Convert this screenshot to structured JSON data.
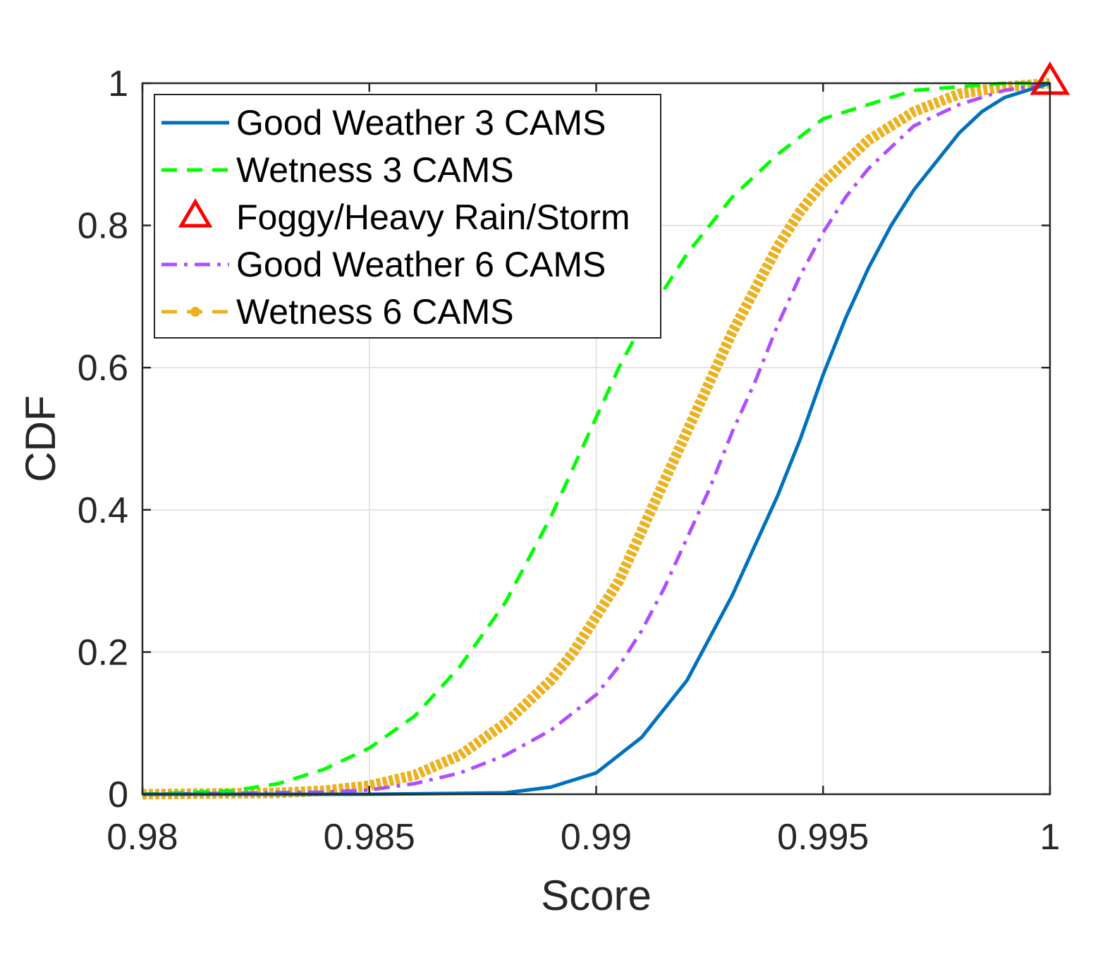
{
  "chart_data": {
    "type": "line",
    "xlabel": "Score",
    "ylabel": "CDF",
    "xlim": [
      0.98,
      1.0
    ],
    "ylim": [
      0,
      1
    ],
    "grid": true,
    "legend_position": "top-left",
    "xticks": [
      0.98,
      0.985,
      0.99,
      0.995,
      1.0
    ],
    "xtick_labels": [
      "0.98",
      "0.985",
      "0.99",
      "0.995",
      "1"
    ],
    "yticks": [
      0,
      0.2,
      0.4,
      0.6,
      0.8,
      1.0
    ],
    "ytick_labels": [
      "0",
      "0.2",
      "0.4",
      "0.6",
      "0.8",
      "1"
    ],
    "series": [
      {
        "name": "Good Weather 3 CAMS",
        "color": "#0072BD",
        "style": "solid",
        "x": [
          0.98,
          0.985,
          0.988,
          0.989,
          0.99,
          0.991,
          0.992,
          0.993,
          0.9935,
          0.994,
          0.9945,
          0.995,
          0.9955,
          0.996,
          0.9965,
          0.997,
          0.9975,
          0.998,
          0.9985,
          0.999,
          0.9995,
          1.0
        ],
        "y": [
          0.0,
          0.0,
          0.002,
          0.01,
          0.03,
          0.08,
          0.16,
          0.28,
          0.35,
          0.42,
          0.5,
          0.59,
          0.67,
          0.74,
          0.8,
          0.85,
          0.89,
          0.93,
          0.96,
          0.98,
          0.99,
          1.0
        ]
      },
      {
        "name": "Wetness 3 CAMS",
        "color": "#00FF00",
        "style": "dashed",
        "x": [
          0.98,
          0.982,
          0.983,
          0.984,
          0.985,
          0.986,
          0.987,
          0.988,
          0.9885,
          0.989,
          0.9895,
          0.99,
          0.9905,
          0.991,
          0.9915,
          0.992,
          0.993,
          0.994,
          0.995,
          0.996,
          0.997,
          0.998,
          0.999,
          1.0
        ],
        "y": [
          0.0,
          0.005,
          0.015,
          0.035,
          0.065,
          0.11,
          0.18,
          0.27,
          0.33,
          0.39,
          0.46,
          0.53,
          0.6,
          0.66,
          0.71,
          0.76,
          0.84,
          0.9,
          0.95,
          0.97,
          0.99,
          0.995,
          1.0,
          1.0
        ]
      },
      {
        "name": "Foggy/Heavy Rain/Storm",
        "color": "#FF0000",
        "style": "marker-triangle",
        "x": [
          1.0
        ],
        "y": [
          1.0
        ]
      },
      {
        "name": "Good Weather 6 CAMS",
        "color": "#B04EFF",
        "style": "dashdot",
        "x": [
          0.98,
          0.984,
          0.985,
          0.986,
          0.987,
          0.988,
          0.989,
          0.99,
          0.9905,
          0.991,
          0.9915,
          0.992,
          0.9925,
          0.993,
          0.9935,
          0.994,
          0.9945,
          0.995,
          0.9955,
          0.996,
          0.997,
          0.998,
          0.999,
          1.0
        ],
        "y": [
          0.0,
          0.003,
          0.006,
          0.015,
          0.03,
          0.055,
          0.09,
          0.14,
          0.18,
          0.23,
          0.29,
          0.36,
          0.43,
          0.51,
          0.58,
          0.66,
          0.73,
          0.79,
          0.84,
          0.88,
          0.94,
          0.97,
          0.99,
          1.0
        ]
      },
      {
        "name": "Wetness 6 CAMS",
        "color": "#EDB120",
        "style": "dashed-marker",
        "x": [
          0.98,
          0.983,
          0.984,
          0.985,
          0.986,
          0.987,
          0.988,
          0.989,
          0.9895,
          0.99,
          0.9905,
          0.991,
          0.9915,
          0.992,
          0.9925,
          0.993,
          0.9935,
          0.994,
          0.9945,
          0.995,
          0.996,
          0.997,
          0.998,
          0.999,
          1.0
        ],
        "y": [
          0.0,
          0.002,
          0.005,
          0.012,
          0.027,
          0.055,
          0.1,
          0.16,
          0.2,
          0.25,
          0.3,
          0.37,
          0.44,
          0.51,
          0.58,
          0.65,
          0.71,
          0.77,
          0.82,
          0.86,
          0.92,
          0.96,
          0.985,
          0.995,
          1.0
        ]
      }
    ]
  }
}
